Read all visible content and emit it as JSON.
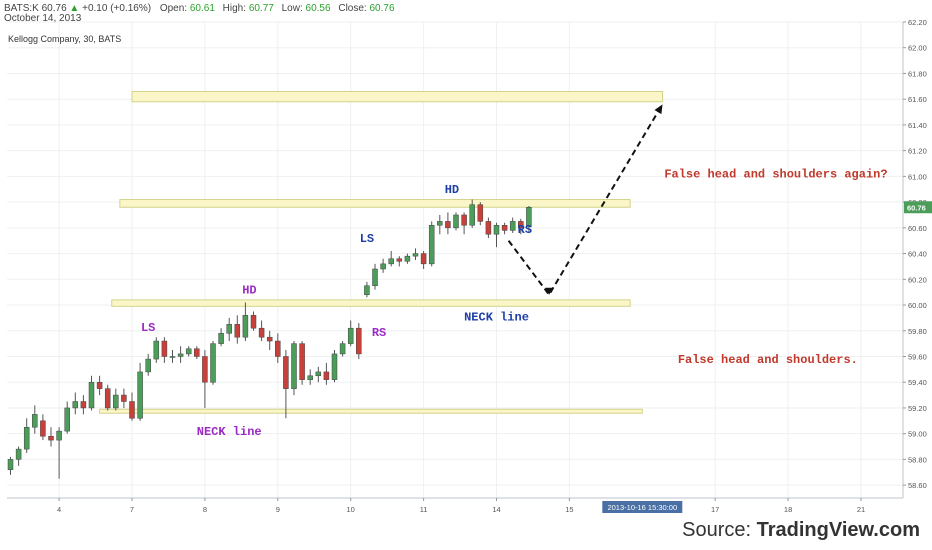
{
  "header": {
    "symbol": "BATS:K",
    "last": "60.76",
    "change_arrow": "▲",
    "change": "+0.10 (+0.16%)",
    "open_label": "Open:",
    "open": "60.61",
    "high_label": "High:",
    "high": "60.77",
    "low_label": "Low:",
    "low": "60.56",
    "close_label": "Close:",
    "close": "60.76",
    "date": "October 14, 2013"
  },
  "panel_title": "Kellogg Company, 30, BATS",
  "source": {
    "prefix": "Source: ",
    "brand": "TradingView.com"
  },
  "colors": {
    "up": "#4c9c5a",
    "down": "#c8403a",
    "zone_fill": "#fbf6c8",
    "zone_stroke": "#d2d38a",
    "purple": "#9a2bc4",
    "blue": "#1f3fa8",
    "red": "#c0392b",
    "price_tag": "#4c9c5a",
    "date_tag": "#4a6fa5"
  },
  "chart_data": {
    "type": "candlestick",
    "y_axis": {
      "min": 58.5,
      "max": 62.2,
      "ticks": [
        "58.60",
        "58.80",
        "59.00",
        "59.20",
        "59.40",
        "59.60",
        "59.80",
        "60.00",
        "60.20",
        "60.40",
        "60.60",
        "60.80",
        "61.00",
        "61.20",
        "61.40",
        "61.60",
        "61.80",
        "62.00",
        "62.20"
      ]
    },
    "x_axis": {
      "ticks": [
        {
          "label": "4",
          "bar": 6
        },
        {
          "label": "7",
          "bar": 15
        },
        {
          "label": "8",
          "bar": 24
        },
        {
          "label": "9",
          "bar": 33
        },
        {
          "label": "10",
          "bar": 42
        },
        {
          "label": "11",
          "bar": 51
        },
        {
          "label": "14",
          "bar": 60
        },
        {
          "label": "15",
          "bar": 69
        },
        {
          "label": "17",
          "bar": 87
        },
        {
          "label": "18",
          "bar": 96
        },
        {
          "label": "21",
          "bar": 105
        }
      ]
    },
    "last_price": "60.76",
    "crosshair_date": "2013-10-16 15:30:00",
    "crosshair_bar": 78,
    "candles": [
      {
        "o": 58.72,
        "h": 58.82,
        "l": 58.68,
        "c": 58.8
      },
      {
        "o": 58.8,
        "h": 58.9,
        "l": 58.75,
        "c": 58.88
      },
      {
        "o": 58.88,
        "h": 59.12,
        "l": 58.85,
        "c": 59.05
      },
      {
        "o": 59.05,
        "h": 59.22,
        "l": 59.0,
        "c": 59.15
      },
      {
        "o": 59.1,
        "h": 59.15,
        "l": 58.95,
        "c": 58.98
      },
      {
        "o": 58.98,
        "h": 59.05,
        "l": 58.9,
        "c": 58.95
      },
      {
        "o": 58.95,
        "h": 59.05,
        "l": 58.65,
        "c": 59.02
      },
      {
        "o": 59.02,
        "h": 59.25,
        "l": 59.0,
        "c": 59.2
      },
      {
        "o": 59.2,
        "h": 59.32,
        "l": 59.15,
        "c": 59.25
      },
      {
        "o": 59.25,
        "h": 59.3,
        "l": 59.15,
        "c": 59.2
      },
      {
        "o": 59.2,
        "h": 59.45,
        "l": 59.18,
        "c": 59.4
      },
      {
        "o": 59.4,
        "h": 59.45,
        "l": 59.3,
        "c": 59.35
      },
      {
        "o": 59.35,
        "h": 59.38,
        "l": 59.18,
        "c": 59.2
      },
      {
        "o": 59.2,
        "h": 59.35,
        "l": 59.18,
        "c": 59.3
      },
      {
        "o": 59.3,
        "h": 59.35,
        "l": 59.2,
        "c": 59.25
      },
      {
        "o": 59.25,
        "h": 59.32,
        "l": 59.1,
        "c": 59.12
      },
      {
        "o": 59.12,
        "h": 59.55,
        "l": 59.1,
        "c": 59.48
      },
      {
        "o": 59.48,
        "h": 59.62,
        "l": 59.45,
        "c": 59.58
      },
      {
        "o": 59.58,
        "h": 59.75,
        "l": 59.55,
        "c": 59.72
      },
      {
        "o": 59.72,
        "h": 59.75,
        "l": 59.55,
        "c": 59.6
      },
      {
        "o": 59.6,
        "h": 59.65,
        "l": 59.55,
        "c": 59.6
      },
      {
        "o": 59.6,
        "h": 59.68,
        "l": 59.55,
        "c": 59.62
      },
      {
        "o": 59.62,
        "h": 59.68,
        "l": 59.6,
        "c": 59.66
      },
      {
        "o": 59.66,
        "h": 59.68,
        "l": 59.58,
        "c": 59.6
      },
      {
        "o": 59.6,
        "h": 59.65,
        "l": 59.2,
        "c": 59.4
      },
      {
        "o": 59.4,
        "h": 59.72,
        "l": 59.38,
        "c": 59.7
      },
      {
        "o": 59.7,
        "h": 59.82,
        "l": 59.68,
        "c": 59.78
      },
      {
        "o": 59.78,
        "h": 59.9,
        "l": 59.72,
        "c": 59.85
      },
      {
        "o": 59.85,
        "h": 59.92,
        "l": 59.7,
        "c": 59.75
      },
      {
        "o": 59.75,
        "h": 60.02,
        "l": 59.72,
        "c": 59.92
      },
      {
        "o": 59.92,
        "h": 59.95,
        "l": 59.8,
        "c": 59.82
      },
      {
        "o": 59.82,
        "h": 59.88,
        "l": 59.72,
        "c": 59.75
      },
      {
        "o": 59.75,
        "h": 59.8,
        "l": 59.65,
        "c": 59.72
      },
      {
        "o": 59.72,
        "h": 59.78,
        "l": 59.55,
        "c": 59.6
      },
      {
        "o": 59.6,
        "h": 59.65,
        "l": 59.12,
        "c": 59.35
      },
      {
        "o": 59.35,
        "h": 59.72,
        "l": 59.3,
        "c": 59.7
      },
      {
        "o": 59.7,
        "h": 59.72,
        "l": 59.38,
        "c": 59.42
      },
      {
        "o": 59.42,
        "h": 59.5,
        "l": 59.38,
        "c": 59.45
      },
      {
        "o": 59.45,
        "h": 59.52,
        "l": 59.4,
        "c": 59.48
      },
      {
        "o": 59.48,
        "h": 59.55,
        "l": 59.38,
        "c": 59.42
      },
      {
        "o": 59.42,
        "h": 59.65,
        "l": 59.4,
        "c": 59.62
      },
      {
        "o": 59.62,
        "h": 59.72,
        "l": 59.6,
        "c": 59.7
      },
      {
        "o": 59.7,
        "h": 59.88,
        "l": 59.68,
        "c": 59.82
      },
      {
        "o": 59.82,
        "h": 59.86,
        "l": 59.58,
        "c": 59.62
      },
      {
        "o": 60.08,
        "h": 60.18,
        "l": 60.06,
        "c": 60.15
      },
      {
        "o": 60.15,
        "h": 60.32,
        "l": 60.12,
        "c": 60.28
      },
      {
        "o": 60.28,
        "h": 60.36,
        "l": 60.25,
        "c": 60.32
      },
      {
        "o": 60.32,
        "h": 60.42,
        "l": 60.3,
        "c": 60.36
      },
      {
        "o": 60.36,
        "h": 60.38,
        "l": 60.3,
        "c": 60.34
      },
      {
        "o": 60.34,
        "h": 60.4,
        "l": 60.32,
        "c": 60.38
      },
      {
        "o": 60.38,
        "h": 60.44,
        "l": 60.35,
        "c": 60.4
      },
      {
        "o": 60.4,
        "h": 60.42,
        "l": 60.28,
        "c": 60.32
      },
      {
        "o": 60.32,
        "h": 60.65,
        "l": 60.3,
        "c": 60.62
      },
      {
        "o": 60.62,
        "h": 60.7,
        "l": 60.55,
        "c": 60.65
      },
      {
        "o": 60.65,
        "h": 60.72,
        "l": 60.55,
        "c": 60.6
      },
      {
        "o": 60.6,
        "h": 60.72,
        "l": 60.58,
        "c": 60.7
      },
      {
        "o": 60.7,
        "h": 60.72,
        "l": 60.55,
        "c": 60.62
      },
      {
        "o": 60.62,
        "h": 60.82,
        "l": 60.6,
        "c": 60.78
      },
      {
        "o": 60.78,
        "h": 60.8,
        "l": 60.62,
        "c": 60.65
      },
      {
        "o": 60.65,
        "h": 60.68,
        "l": 60.52,
        "c": 60.55
      },
      {
        "o": 60.55,
        "h": 60.64,
        "l": 60.45,
        "c": 60.62
      },
      {
        "o": 60.62,
        "h": 60.64,
        "l": 60.55,
        "c": 60.58
      },
      {
        "o": 60.58,
        "h": 60.68,
        "l": 60.56,
        "c": 60.65
      },
      {
        "o": 60.65,
        "h": 60.67,
        "l": 60.55,
        "c": 60.6
      },
      {
        "o": 60.61,
        "h": 60.77,
        "l": 60.56,
        "c": 60.76
      }
    ],
    "zones": [
      {
        "name": "zone-61-60",
        "bar_start": 15,
        "bar_end": 80.5,
        "low": 61.58,
        "high": 61.66
      },
      {
        "name": "zone-60-80",
        "bar_start": 13.5,
        "bar_end": 76.5,
        "low": 60.76,
        "high": 60.82
      },
      {
        "name": "zone-60-00",
        "bar_start": 12.5,
        "bar_end": 76.5,
        "low": 59.99,
        "high": 60.04
      },
      {
        "name": "zone-59-20",
        "bar_start": 11,
        "bar_end": 78,
        "low": 59.16,
        "high": 59.19
      }
    ],
    "projection": [
      {
        "bar": 61.5,
        "price": 60.5
      },
      {
        "bar": 66.5,
        "price": 60.08
      },
      {
        "bar": 80.5,
        "price": 61.56
      }
    ],
    "annotations": [
      {
        "text": "LS",
        "bar": 17,
        "price": 59.8,
        "color": "purple"
      },
      {
        "text": "HD",
        "bar": 29.5,
        "price": 60.09,
        "color": "purple"
      },
      {
        "text": "RS",
        "bar": 45.5,
        "price": 59.76,
        "color": "purple"
      },
      {
        "text": "NECK line",
        "bar": 27,
        "price": 58.99,
        "color": "purple"
      },
      {
        "text": "LS",
        "bar": 44,
        "price": 60.49,
        "color": "blue"
      },
      {
        "text": "HD",
        "bar": 54.5,
        "price": 60.87,
        "color": "blue"
      },
      {
        "text": "RS",
        "bar": 63.5,
        "price": 60.56,
        "color": "blue"
      },
      {
        "text": "NECK line",
        "bar": 60,
        "price": 59.88,
        "color": "blue"
      },
      {
        "text": "False head and shoulders again?",
        "bar": 94.5,
        "price": 60.99,
        "color": "red"
      },
      {
        "text": "False head and shoulders.",
        "bar": 93.5,
        "price": 59.55,
        "color": "red"
      }
    ]
  }
}
